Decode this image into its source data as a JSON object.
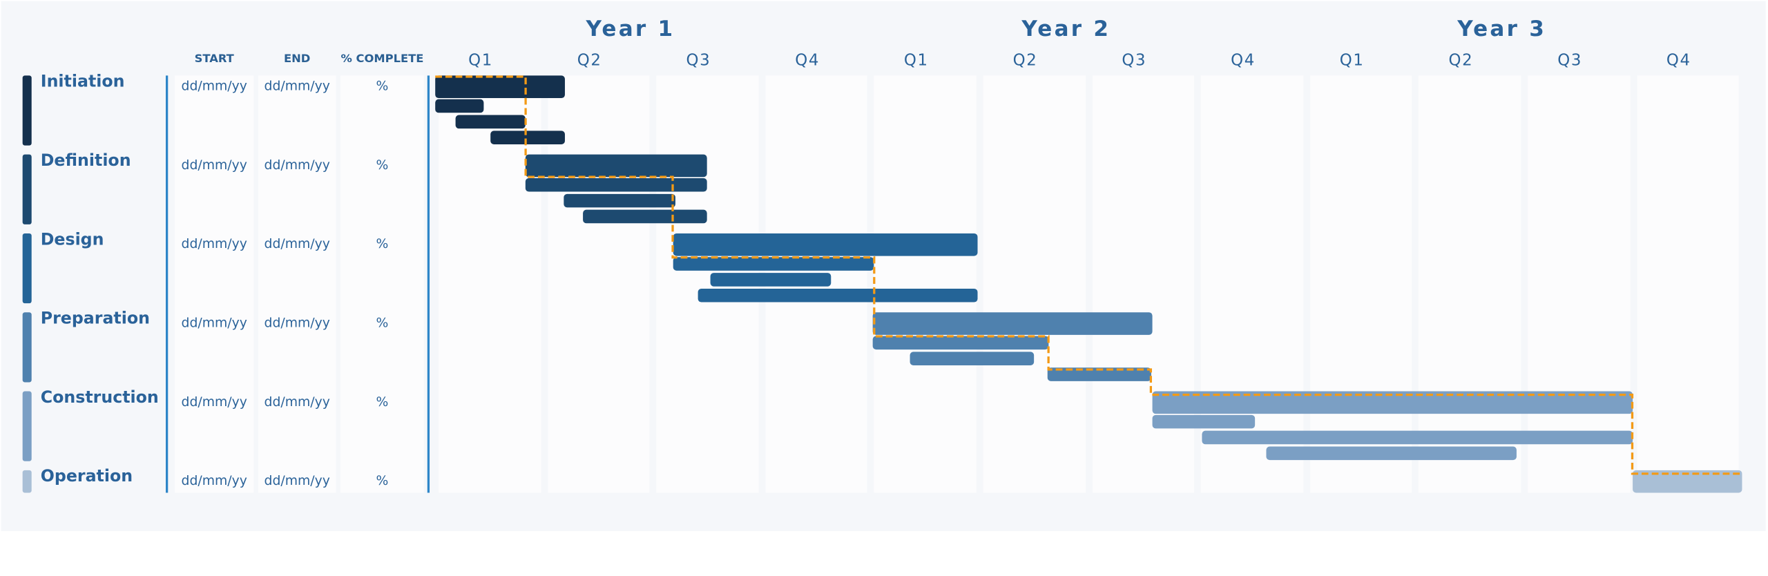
{
  "header": {
    "col_start": "START",
    "col_end": "END",
    "col_complete": "% COMPLETE"
  },
  "colors": {
    "accent": "#2a6299",
    "critical_path": "#f39a16"
  },
  "chart_data": {
    "type": "gantt",
    "years": [
      "Year 1",
      "Year 2",
      "Year 3"
    ],
    "quarters": [
      "Q1",
      "Q2",
      "Q3",
      "Q4",
      "Q1",
      "Q2",
      "Q3",
      "Q4",
      "Q1",
      "Q2",
      "Q3",
      "Q4"
    ],
    "x_unit": "quarters from start",
    "xlim": [
      0,
      12
    ],
    "phases": [
      {
        "name": "Initiation",
        "start": "dd/mm/yy",
        "end": "dd/mm/yy",
        "complete": "%",
        "color": "#14304d",
        "main": [
          0,
          1.19
        ],
        "tasks": [
          [
            0,
            0.45
          ],
          [
            0.19,
            0.83
          ],
          [
            0.51,
            1.19
          ]
        ]
      },
      {
        "name": "Definition",
        "start": "dd/mm/yy",
        "end": "dd/mm/yy",
        "complete": "%",
        "color": "#1d4a70",
        "main": [
          0.83,
          2.49
        ],
        "tasks": [
          [
            0.83,
            2.49
          ],
          [
            1.18,
            2.2
          ],
          [
            1.36,
            2.49
          ]
        ]
      },
      {
        "name": "Design",
        "start": "dd/mm/yy",
        "end": "dd/mm/yy",
        "complete": "%",
        "color": "#246497",
        "main": [
          2.18,
          4.98
        ],
        "tasks": [
          [
            2.18,
            4.03
          ],
          [
            2.53,
            3.63
          ],
          [
            2.41,
            4.98
          ]
        ]
      },
      {
        "name": "Preparation",
        "start": "dd/mm/yy",
        "end": "dd/mm/yy",
        "complete": "%",
        "color": "#4f81ae",
        "main": [
          4.02,
          6.58
        ],
        "tasks": [
          [
            4.02,
            5.63
          ],
          [
            4.36,
            5.5
          ],
          [
            5.62,
            6.57
          ]
        ]
      },
      {
        "name": "Construction",
        "start": "dd/mm/yy",
        "end": "dd/mm/yy",
        "complete": "%",
        "color": "#7b9fc4",
        "main": [
          6.58,
          10.99
        ],
        "tasks": [
          [
            6.58,
            7.53
          ],
          [
            7.04,
            10.99
          ],
          [
            7.63,
            9.93
          ]
        ]
      },
      {
        "name": "Operation",
        "start": "dd/mm/yy",
        "end": "dd/mm/yy",
        "complete": "%",
        "color": "#a9bfd6",
        "main": [
          10.99,
          12
        ],
        "tasks": []
      }
    ],
    "critical_path": [
      [
        0,
        0
      ],
      [
        0.83,
        0
      ],
      [
        0.83,
        1.27
      ],
      [
        2.18,
        1.27
      ],
      [
        2.18,
        2.29
      ],
      [
        4.03,
        2.29
      ],
      [
        4.03,
        3.29
      ],
      [
        5.63,
        3.29
      ],
      [
        5.63,
        3.71
      ],
      [
        6.57,
        3.71
      ],
      [
        6.57,
        4.03
      ],
      [
        10.99,
        4.03
      ],
      [
        10.99,
        5.03
      ],
      [
        12,
        5.03
      ]
    ]
  }
}
